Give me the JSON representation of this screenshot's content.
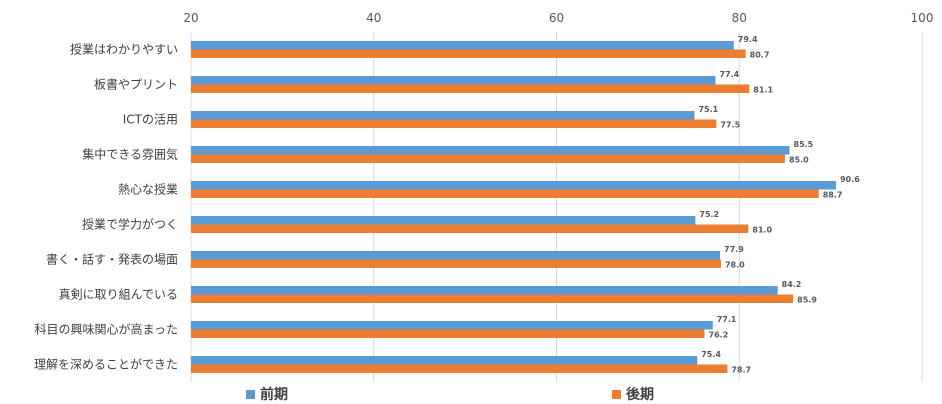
{
  "chart_data": {
    "type": "bar",
    "orientation": "horizontal",
    "title": "",
    "categories": [
      "授業はわかりやすい",
      "板書やプリント",
      "ICTの活用",
      "集中できる雰囲気",
      "熱心な授業",
      "授業で学力がつく",
      "書く・話す・発表の場面",
      "真剣に取り組んでいる",
      "科目の興味関心が高まった",
      "理解を深めることができた"
    ],
    "series": [
      {
        "name": "前期",
        "color": "#5B9BD5",
        "values": [
          79.4,
          77.4,
          75.1,
          85.5,
          90.6,
          75.2,
          77.9,
          84.2,
          77.1,
          75.4
        ]
      },
      {
        "name": "後期",
        "color": "#ED7D31",
        "values": [
          80.7,
          81.1,
          77.5,
          85.0,
          88.7,
          81.0,
          78.0,
          85.9,
          76.2,
          78.7
        ]
      }
    ],
    "xlim": [
      20,
      100
    ],
    "xticks": [
      20,
      40,
      60,
      80,
      100
    ],
    "grid": true,
    "legend_position": "bottom"
  }
}
